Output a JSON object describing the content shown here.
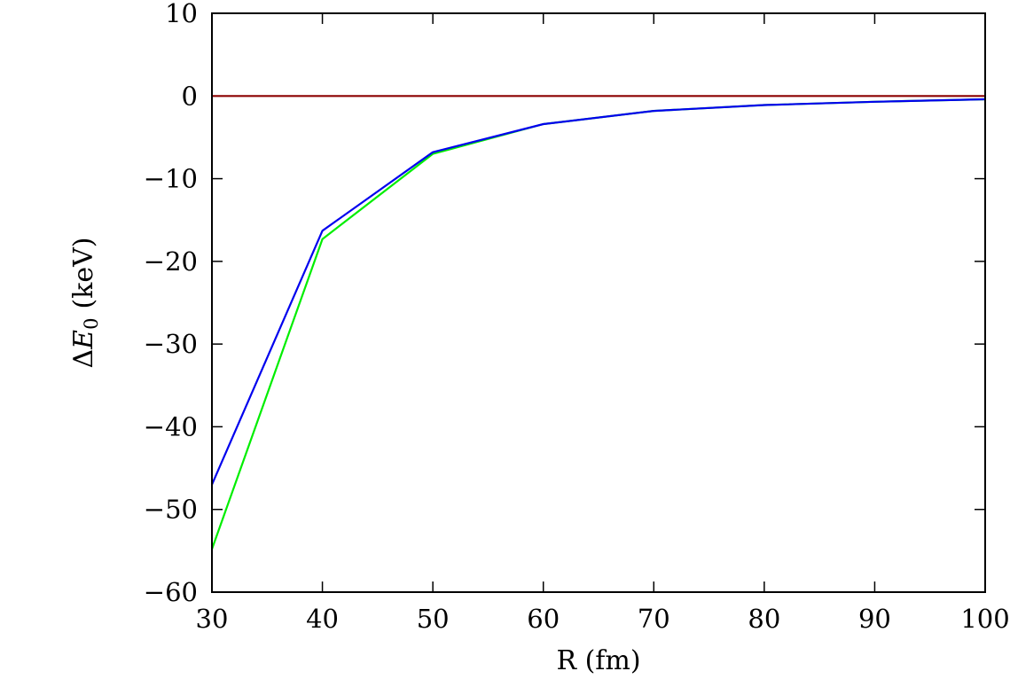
{
  "chart_data": {
    "type": "line",
    "title": "",
    "xlabel": "R (fm)",
    "ylabel": {
      "delta": "Δ",
      "symbol": "E",
      "subscript": "0",
      "unit": "(keV)"
    },
    "xlim": [
      30,
      100
    ],
    "ylim": [
      -60,
      10
    ],
    "x_ticks": [
      {
        "value": 30,
        "label": "30"
      },
      {
        "value": 40,
        "label": "40"
      },
      {
        "value": 50,
        "label": "50"
      },
      {
        "value": 60,
        "label": "60"
      },
      {
        "value": 70,
        "label": "70"
      },
      {
        "value": 80,
        "label": "80"
      },
      {
        "value": 90,
        "label": "90"
      },
      {
        "value": 100,
        "label": "100"
      }
    ],
    "y_ticks": [
      {
        "value": 10,
        "label": "10"
      },
      {
        "value": 0,
        "label": "0"
      },
      {
        "value": -10,
        "label": "−10"
      },
      {
        "value": -20,
        "label": "−20"
      },
      {
        "value": -30,
        "label": "−30"
      },
      {
        "value": -40,
        "label": "−40"
      },
      {
        "value": -50,
        "label": "−50"
      },
      {
        "value": -60,
        "label": "−60"
      }
    ],
    "grid": false,
    "legend": "none",
    "series": [
      {
        "color": "#00ee00",
        "x": [
          30,
          40,
          50,
          60,
          70,
          80,
          90,
          100
        ],
        "y": [
          -54.8,
          -17.3,
          -7.0,
          -3.4,
          -1.8,
          -1.1,
          -0.7,
          -0.4
        ]
      },
      {
        "color": "#0000ee",
        "x": [
          30,
          40,
          50,
          60,
          70,
          80,
          90,
          100
        ],
        "y": [
          -47.0,
          -16.3,
          -6.8,
          -3.4,
          -1.8,
          -1.1,
          -0.7,
          -0.4
        ]
      },
      {
        "color": "#8b0000",
        "x": [
          30,
          40,
          50,
          60,
          70,
          80,
          90,
          100
        ],
        "y": [
          0,
          0,
          0,
          0,
          0,
          0,
          0,
          0
        ]
      }
    ]
  }
}
